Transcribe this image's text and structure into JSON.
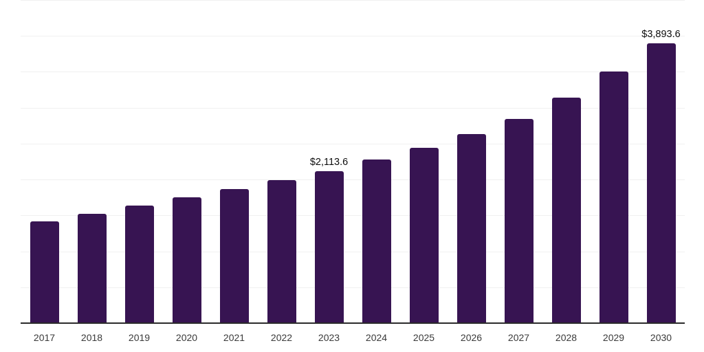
{
  "chart_data": {
    "type": "bar",
    "title": "",
    "xlabel": "",
    "ylabel": "",
    "categories": [
      "2017",
      "2018",
      "2019",
      "2020",
      "2021",
      "2022",
      "2023",
      "2024",
      "2025",
      "2026",
      "2027",
      "2028",
      "2029",
      "2030"
    ],
    "values": [
      1415,
      1525,
      1640,
      1755,
      1870,
      1990,
      2113.6,
      2275,
      2440,
      2630,
      2840,
      3140,
      3500,
      3893.6
    ],
    "data_labels": [
      "",
      "",
      "",
      "",
      "",
      "",
      "$2,113.6",
      "",
      "",
      "",
      "",
      "",
      "",
      "$3,893.6"
    ],
    "ylim": [
      0,
      4500
    ],
    "grid_step": 500,
    "grid": "horizontal",
    "legend": "none",
    "colors": {
      "bar": "#371452",
      "axis_line": "#2b2b2b",
      "gridline": "#f0f0f0",
      "data_label": "#0d0d0d",
      "tick_label": "#3a3a3a",
      "background": "#ffffff"
    }
  }
}
